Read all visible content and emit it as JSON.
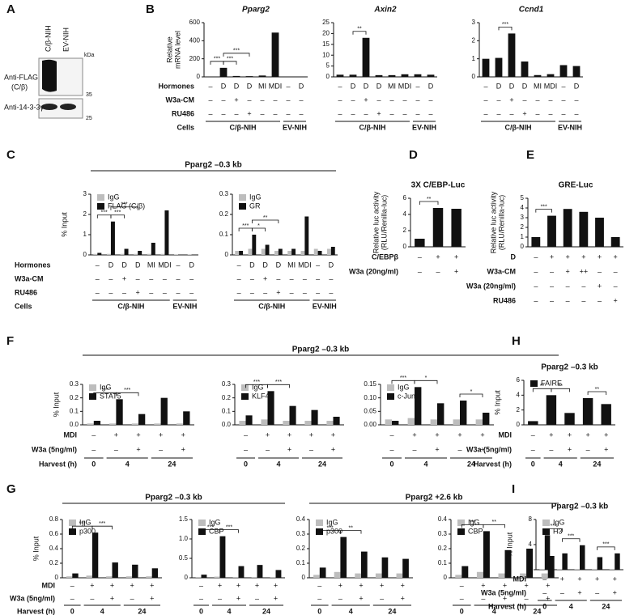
{
  "panel_letters": [
    "A",
    "B",
    "C",
    "D",
    "E",
    "F",
    "G",
    "H",
    "I"
  ],
  "blot": {
    "lanes": [
      "C/β-NIH",
      "EV-NIH"
    ],
    "unit": "kDa",
    "rows": [
      {
        "label": [
          "Anti-FLAG",
          "(C/β)"
        ],
        "marker": 35
      },
      {
        "label": [
          "Anti-14-3-3γ"
        ],
        "marker": 25
      }
    ]
  },
  "group_titles": [
    "Pparg2 –0.3 kb",
    "Pparg2 –0.3 kb",
    "Pparg2 –0.3 kb",
    "Pparg2 +2.6 kb"
  ],
  "chart_data": [
    {
      "type": "bar",
      "title": "Pparg2",
      "ylabel": [
        "Relative",
        "mRNA level"
      ],
      "ylim": [
        0,
        600
      ],
      "yticks": [
        0,
        200,
        400,
        600
      ],
      "color": "#111111",
      "values": [
        3,
        100,
        10,
        8,
        15,
        490,
        2,
        2
      ],
      "conditions": [
        [
          "–",
          "D",
          "D",
          "D",
          "MI",
          "MDI",
          "–",
          "D"
        ],
        [
          "–",
          "–",
          "+",
          "–",
          "–",
          "–",
          "–",
          "–"
        ],
        [
          "–",
          "–",
          "–",
          "+",
          "–",
          "–",
          "–",
          "–"
        ]
      ],
      "row_labels": [
        "Hormones",
        "W3a-CM",
        "RU486",
        "Cells"
      ],
      "groups": [
        "C/β-NIH",
        "EV-NIH"
      ],
      "annotations": [
        "***",
        "***",
        "***"
      ]
    },
    {
      "type": "bar",
      "title": "Axin2",
      "ylim": [
        0,
        25
      ],
      "yticks": [
        0,
        5,
        10,
        15,
        20,
        25
      ],
      "color": "#111111",
      "values": [
        1,
        1,
        18,
        0.8,
        0.8,
        1.2,
        1.2,
        1
      ],
      "conditions": [
        [
          "–",
          "D",
          "D",
          "D",
          "MI",
          "MDI",
          "–",
          "D"
        ],
        [
          "–",
          "–",
          "+",
          "–",
          "–",
          "–",
          "–",
          "–"
        ],
        [
          "–",
          "–",
          "–",
          "+",
          "–",
          "–",
          "–",
          "–"
        ]
      ],
      "groups": [
        "C/β-NIH",
        "EV-NIH"
      ],
      "annotations": [
        "**"
      ]
    },
    {
      "type": "bar",
      "title": "Ccnd1",
      "ylim": [
        0,
        3
      ],
      "yticks": [
        0,
        1,
        2,
        3
      ],
      "color": "#111111",
      "values": [
        1,
        1.05,
        2.4,
        0.85,
        0.1,
        0.15,
        0.65,
        0.6
      ],
      "conditions": [
        [
          "–",
          "D",
          "D",
          "D",
          "MI",
          "MDI",
          "–",
          "D"
        ],
        [
          "–",
          "–",
          "+",
          "–",
          "–",
          "–",
          "–",
          "–"
        ],
        [
          "–",
          "–",
          "–",
          "+",
          "–",
          "–",
          "–",
          "–"
        ]
      ],
      "groups": [
        "C/β-NIH",
        "EV-NIH"
      ],
      "annotations": [
        "***"
      ]
    },
    {
      "type": "bar",
      "ylabel": [
        "% Input"
      ],
      "ylim": [
        0,
        3
      ],
      "yticks": [
        0,
        1,
        2,
        3
      ],
      "series": [
        {
          "name": "IgG",
          "color": "#bdbdbd",
          "values": [
            0.05,
            0.05,
            0.05,
            0.05,
            0.05,
            0.05,
            0.03,
            0.03
          ]
        },
        {
          "name": "FLAG (C/β)",
          "color": "#111111",
          "values": [
            0.1,
            1.65,
            0.3,
            0.2,
            0.6,
            2.2,
            0.02,
            0.02
          ]
        }
      ],
      "conditions": [
        [
          "–",
          "D",
          "D",
          "D",
          "MI",
          "MDI",
          "–",
          "D"
        ],
        [
          "–",
          "–",
          "+",
          "–",
          "–",
          "–",
          "–",
          "–"
        ],
        [
          "–",
          "–",
          "–",
          "+",
          "–",
          "–",
          "–",
          "–"
        ]
      ],
      "row_labels": [
        "Hormones",
        "W3a-CM",
        "RU486",
        "Cells"
      ],
      "groups": [
        "C/β-NIH",
        "EV-NIH"
      ],
      "annotations": [
        "***",
        "***",
        "***"
      ]
    },
    {
      "type": "bar",
      "ylim": [
        0,
        0.3
      ],
      "yticks": [
        0,
        0.1,
        0.2,
        0.3
      ],
      "series": [
        {
          "name": "IgG",
          "color": "#bdbdbd",
          "values": [
            0.02,
            0.03,
            0.03,
            0.02,
            0.02,
            0.02,
            0.03,
            0.03
          ]
        },
        {
          "name": "GR",
          "color": "#111111",
          "values": [
            0.02,
            0.1,
            0.05,
            0.03,
            0.03,
            0.19,
            0.02,
            0.04
          ]
        }
      ],
      "conditions": [
        [
          "–",
          "D",
          "D",
          "D",
          "MI",
          "MDI",
          "–",
          "D"
        ],
        [
          "–",
          "–",
          "+",
          "–",
          "–",
          "–",
          "–",
          "–"
        ],
        [
          "–",
          "–",
          "–",
          "+",
          "–",
          "–",
          "–",
          "–"
        ]
      ],
      "groups": [
        "C/β-NIH",
        "EV-NIH"
      ],
      "annotations": [
        "***",
        "*",
        "**"
      ]
    },
    {
      "type": "bar",
      "title": "3X C/EBP-Luc",
      "ylabel": [
        "Relative luc activity",
        "(RLU/Renilla-luc)"
      ],
      "ylim": [
        0,
        6
      ],
      "yticks": [
        0,
        2,
        4,
        6
      ],
      "color": "#111111",
      "values": [
        1,
        4.8,
        4.7
      ],
      "conditions": [
        [
          "–",
          "+",
          "+"
        ],
        [
          "–",
          "–",
          "+"
        ]
      ],
      "row_labels": [
        "C/EBPβ",
        "W3a (20ng/ml)"
      ],
      "annotations": [
        "**"
      ]
    },
    {
      "type": "bar",
      "title": "GRE-Luc",
      "ylabel": [
        "Relative luc activity",
        "(RLU/Renilla-luc)"
      ],
      "ylim": [
        0,
        5
      ],
      "yticks": [
        0,
        1,
        2,
        3,
        4,
        5
      ],
      "color": "#111111",
      "values": [
        1,
        3.2,
        3.9,
        3.6,
        3.0,
        1.0
      ],
      "conditions": [
        [
          "–",
          "+",
          "+",
          "+",
          "+",
          "+"
        ],
        [
          "–",
          "–",
          "+",
          "++",
          "–",
          "–"
        ],
        [
          "–",
          "–",
          "–",
          "–",
          "+",
          "–"
        ],
        [
          "–",
          "–",
          "–",
          "–",
          "–",
          "+"
        ]
      ],
      "row_labels": [
        "D",
        "W3a-CM",
        "W3a (20ng/ml)",
        "RU486"
      ],
      "annotations": [
        "***"
      ]
    },
    {
      "type": "bar",
      "ylabel": [
        "% Input"
      ],
      "ylim": [
        0,
        0.3
      ],
      "yticks": [
        {
          "value": 0,
          "label": "0.0"
        },
        0.1,
        0.2,
        0.3
      ],
      "series": [
        {
          "name": "IgG",
          "color": "#bdbdbd",
          "values": [
            0.01,
            0.01,
            0.01,
            0.01,
            0.01
          ]
        },
        {
          "name": "STAT5",
          "color": "#111111",
          "values": [
            0.03,
            0.19,
            0.08,
            0.2,
            0.1
          ]
        }
      ],
      "conditions": [
        [
          "–",
          "+",
          "+",
          "+",
          "+"
        ],
        [
          "–",
          "–",
          "+",
          "–",
          "+"
        ]
      ],
      "row_labels": [
        "MDI",
        "W3a (5ng/ml)",
        "Harvest (h)"
      ],
      "groups": [
        "0",
        "4",
        "24"
      ],
      "annotations": [
        "***",
        "***"
      ]
    },
    {
      "type": "bar",
      "ylim": [
        0,
        0.3
      ],
      "yticks": [
        {
          "value": 0,
          "label": "0.0"
        },
        0.1,
        0.2,
        0.3
      ],
      "series": [
        {
          "name": "IgG",
          "color": "#bdbdbd",
          "values": [
            0.03,
            0.04,
            0.03,
            0.03,
            0.03
          ]
        },
        {
          "name": "KLF4",
          "color": "#111111",
          "values": [
            0.07,
            0.25,
            0.14,
            0.11,
            0.06
          ]
        }
      ],
      "conditions": [
        [
          "–",
          "+",
          "+",
          "+",
          "+"
        ],
        [
          "–",
          "–",
          "+",
          "–",
          "+"
        ]
      ],
      "groups": [
        "0",
        "4",
        "24"
      ],
      "annotations": [
        "***",
        "***"
      ]
    },
    {
      "type": "bar",
      "ylim": [
        0,
        0.15
      ],
      "yticks": [
        {
          "value": 0,
          "label": "0.00"
        },
        0.05,
        {
          "value": 0.1,
          "label": "0.10"
        },
        0.15
      ],
      "series": [
        {
          "name": "IgG",
          "color": "#bdbdbd",
          "values": [
            0.02,
            0.025,
            0.02,
            0.02,
            0.02
          ]
        },
        {
          "name": "c-Jun",
          "color": "#111111",
          "values": [
            0.015,
            0.14,
            0.08,
            0.09,
            0.045
          ]
        }
      ],
      "conditions": [
        [
          "–",
          "+",
          "+",
          "+",
          "+"
        ],
        [
          "–",
          "–",
          "+",
          "–",
          "+"
        ]
      ],
      "groups": [
        "0",
        "4",
        "24"
      ],
      "annotations": [
        "***",
        "*",
        "*"
      ]
    },
    {
      "type": "bar",
      "title": "Pparg2 –0.3 kb",
      "ylabel": [
        "% Input"
      ],
      "ylim": [
        0,
        6
      ],
      "yticks": [
        0,
        2,
        4,
        6
      ],
      "series": [
        {
          "name": "FAIRE",
          "color": "#111111",
          "values": [
            0.5,
            4,
            1.6,
            3.6,
            2.8
          ]
        }
      ],
      "conditions": [
        [
          "–",
          "+",
          "+",
          "+",
          "+"
        ],
        [
          "–",
          "–",
          "+",
          "–",
          "+"
        ]
      ],
      "row_labels": [
        "MDI",
        "W3a (5ng/ml)",
        "Harvest (h)"
      ],
      "groups": [
        "0",
        "4",
        "24"
      ],
      "annotations": [
        "**",
        "**",
        "**"
      ]
    },
    {
      "type": "bar",
      "ylabel": [
        "% Input"
      ],
      "ylim": [
        0,
        0.8
      ],
      "yticks": [
        0,
        0.2,
        0.4,
        0.6,
        0.8
      ],
      "series": [
        {
          "name": "IgG",
          "color": "#bdbdbd",
          "values": [
            0.02,
            0.03,
            0.02,
            0.02,
            0.02
          ]
        },
        {
          "name": "p300",
          "color": "#111111",
          "values": [
            0.06,
            0.62,
            0.21,
            0.18,
            0.13
          ]
        }
      ],
      "conditions": [
        [
          "–",
          "+",
          "+",
          "+",
          "+"
        ],
        [
          "–",
          "–",
          "+",
          "–",
          "+"
        ]
      ],
      "row_labels": [
        "MDI",
        "W3a (5ng/ml)",
        "Harvest (h)"
      ],
      "groups": [
        "0",
        "4",
        "24"
      ],
      "annotations": [
        "***",
        "***"
      ]
    },
    {
      "type": "bar",
      "ylim": [
        0,
        1.5
      ],
      "yticks": [
        0,
        0.5,
        {
          "value": 1,
          "label": "1.0"
        },
        1.5
      ],
      "series": [
        {
          "name": "IgG",
          "color": "#bdbdbd",
          "values": [
            0.02,
            0.03,
            0.02,
            0.02,
            0.02
          ]
        },
        {
          "name": "CBP",
          "color": "#111111",
          "values": [
            0.08,
            1.07,
            0.3,
            0.33,
            0.2
          ]
        }
      ],
      "conditions": [
        [
          "–",
          "+",
          "+",
          "+",
          "+"
        ],
        [
          "–",
          "–",
          "+",
          "–",
          "+"
        ]
      ],
      "groups": [
        "0",
        "4",
        "24"
      ],
      "annotations": [
        "***",
        "***"
      ]
    },
    {
      "type": "bar",
      "ylim": [
        0,
        0.4
      ],
      "yticks": [
        0,
        0.1,
        0.2,
        0.3,
        0.4
      ],
      "series": [
        {
          "name": "IgG",
          "color": "#bdbdbd",
          "values": [
            0.02,
            0.04,
            0.03,
            0.03,
            0.03
          ]
        },
        {
          "name": "p300",
          "color": "#111111",
          "values": [
            0.07,
            0.28,
            0.18,
            0.14,
            0.13
          ]
        }
      ],
      "conditions": [
        [
          "–",
          "+",
          "+",
          "+",
          "+"
        ],
        [
          "–",
          "–",
          "+",
          "–",
          "+"
        ]
      ],
      "groups": [
        "0",
        "4",
        "24"
      ],
      "annotations": [
        "***",
        "**"
      ]
    },
    {
      "type": "bar",
      "ylim": [
        0,
        0.4
      ],
      "yticks": [
        0,
        0.1,
        0.2,
        0.3,
        0.4
      ],
      "series": [
        {
          "name": "IgG",
          "color": "#bdbdbd",
          "values": [
            0.02,
            0.04,
            0.03,
            0.03,
            0.03
          ]
        },
        {
          "name": "CBP",
          "color": "#111111",
          "values": [
            0.08,
            0.32,
            0.19,
            0.2,
            0.15
          ]
        }
      ],
      "conditions": [
        [
          "–",
          "+",
          "+",
          "+",
          "+"
        ],
        [
          "–",
          "–",
          "+",
          "–",
          "+"
        ]
      ],
      "groups": [
        "0",
        "4",
        "24"
      ],
      "annotations": [
        "***",
        "**"
      ]
    },
    {
      "type": "bar",
      "title": "Pparg2 –0.3 kb",
      "ylabel": [
        "% Input"
      ],
      "ylim": [
        0,
        8
      ],
      "yticks": [
        0,
        4,
        8
      ],
      "series": [
        {
          "name": "IgG",
          "color": "#bdbdbd",
          "values": [
            0.05,
            0.05,
            0.05,
            0.05,
            0.05
          ]
        },
        {
          "name": "H3",
          "color": "#111111",
          "values": [
            5.5,
            2.6,
            3.9,
            2.0,
            2.6
          ]
        }
      ],
      "conditions": [
        [
          "–",
          "+",
          "+",
          "+",
          "+"
        ],
        [
          "–",
          "–",
          "+",
          "–",
          "+"
        ]
      ],
      "row_labels": [
        "MDI",
        "W3a (5ng/ml)",
        "Harvest (h)"
      ],
      "groups": [
        "0",
        "4",
        "24"
      ],
      "annotations": [
        "***",
        "***",
        "***"
      ]
    }
  ]
}
